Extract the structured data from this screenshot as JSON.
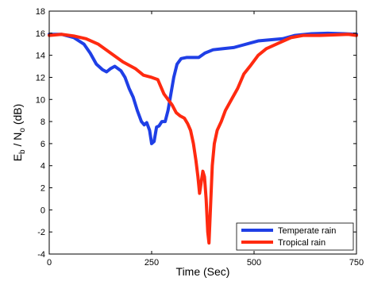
{
  "chart_data": {
    "type": "line",
    "xlabel": "Time (Sec)",
    "ylabel": {
      "full": "Eb / No (dB)",
      "E": "E",
      "b": "b",
      "slash": " / N",
      "o": "o",
      "unit": " (dB)"
    },
    "xlim": [
      0,
      750
    ],
    "ylim": [
      -4,
      18
    ],
    "xticks": [
      0,
      250,
      500,
      750
    ],
    "yticks": [
      -4,
      -2,
      0,
      2,
      4,
      6,
      8,
      10,
      12,
      14,
      16,
      18
    ],
    "grid": false,
    "legend_position": "bottom-right",
    "series": [
      {
        "name": "Temperate rain",
        "color": "#1f3fe6",
        "points": [
          [
            0,
            15.9
          ],
          [
            30,
            15.9
          ],
          [
            60,
            15.6
          ],
          [
            85,
            15.0
          ],
          [
            100,
            14.2
          ],
          [
            115,
            13.2
          ],
          [
            130,
            12.7
          ],
          [
            140,
            12.5
          ],
          [
            150,
            12.8
          ],
          [
            160,
            13.0
          ],
          [
            175,
            12.6
          ],
          [
            185,
            12.0
          ],
          [
            195,
            11.0
          ],
          [
            205,
            10.2
          ],
          [
            215,
            9.0
          ],
          [
            225,
            8.0
          ],
          [
            232,
            7.7
          ],
          [
            238,
            7.9
          ],
          [
            245,
            7.2
          ],
          [
            250,
            6.0
          ],
          [
            256,
            6.2
          ],
          [
            262,
            7.5
          ],
          [
            268,
            7.6
          ],
          [
            275,
            8.0
          ],
          [
            283,
            8.0
          ],
          [
            290,
            9.0
          ],
          [
            297,
            10.5
          ],
          [
            304,
            12.0
          ],
          [
            312,
            13.2
          ],
          [
            322,
            13.7
          ],
          [
            335,
            13.8
          ],
          [
            350,
            13.8
          ],
          [
            365,
            13.8
          ],
          [
            380,
            14.2
          ],
          [
            400,
            14.5
          ],
          [
            425,
            14.6
          ],
          [
            450,
            14.7
          ],
          [
            470,
            14.9
          ],
          [
            490,
            15.1
          ],
          [
            510,
            15.3
          ],
          [
            540,
            15.4
          ],
          [
            570,
            15.5
          ],
          [
            600,
            15.8
          ],
          [
            640,
            15.95
          ],
          [
            680,
            16.0
          ],
          [
            720,
            15.95
          ],
          [
            750,
            15.9
          ]
        ]
      },
      {
        "name": "Tropical rain",
        "color": "#ff2a10",
        "points": [
          [
            0,
            15.8
          ],
          [
            30,
            15.9
          ],
          [
            60,
            15.75
          ],
          [
            90,
            15.5
          ],
          [
            120,
            15.0
          ],
          [
            150,
            14.2
          ],
          [
            180,
            13.4
          ],
          [
            210,
            12.8
          ],
          [
            230,
            12.2
          ],
          [
            250,
            12.0
          ],
          [
            265,
            11.8
          ],
          [
            280,
            10.5
          ],
          [
            290,
            10.0
          ],
          [
            300,
            9.5
          ],
          [
            310,
            8.8
          ],
          [
            320,
            8.5
          ],
          [
            330,
            8.3
          ],
          [
            338,
            7.8
          ],
          [
            345,
            7.2
          ],
          [
            352,
            6.0
          ],
          [
            358,
            4.5
          ],
          [
            363,
            3.0
          ],
          [
            367,
            1.5
          ],
          [
            371,
            2.5
          ],
          [
            375,
            3.5
          ],
          [
            379,
            3.0
          ],
          [
            383,
            1.0
          ],
          [
            387,
            -2.0
          ],
          [
            390,
            -3.0
          ],
          [
            394,
            0.5
          ],
          [
            398,
            4.0
          ],
          [
            403,
            6.0
          ],
          [
            410,
            7.2
          ],
          [
            420,
            8.0
          ],
          [
            430,
            9.0
          ],
          [
            445,
            10.0
          ],
          [
            460,
            11.0
          ],
          [
            475,
            12.3
          ],
          [
            490,
            13.0
          ],
          [
            510,
            14.0
          ],
          [
            530,
            14.6
          ],
          [
            560,
            15.1
          ],
          [
            590,
            15.6
          ],
          [
            620,
            15.8
          ],
          [
            660,
            15.8
          ],
          [
            700,
            15.85
          ],
          [
            730,
            15.9
          ],
          [
            750,
            15.8
          ]
        ]
      }
    ]
  }
}
